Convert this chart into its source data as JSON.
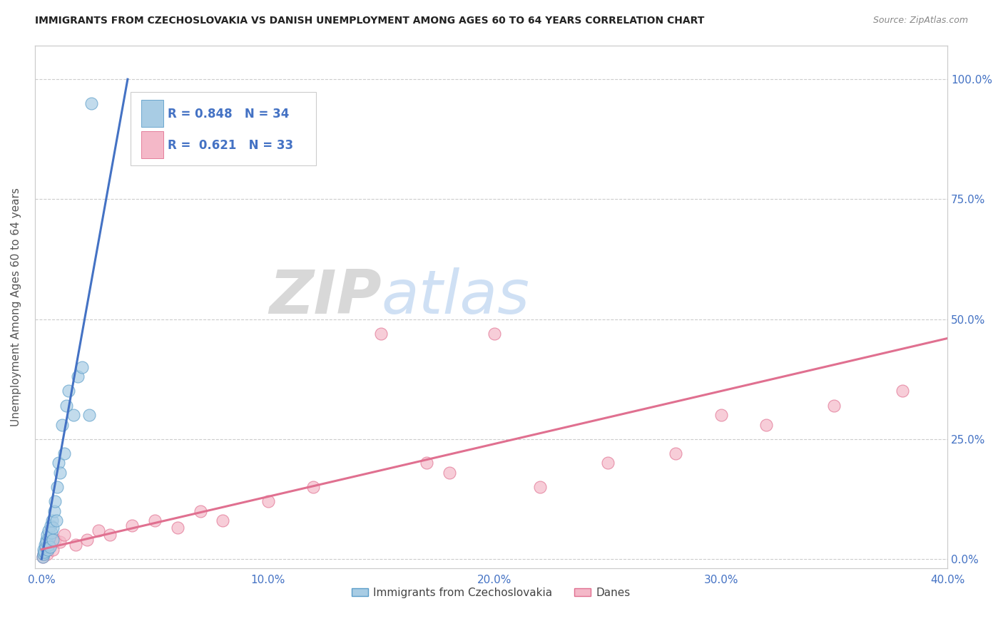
{
  "title": "IMMIGRANTS FROM CZECHOSLOVAKIA VS DANISH UNEMPLOYMENT AMONG AGES 60 TO 64 YEARS CORRELATION CHART",
  "source": "Source: ZipAtlas.com",
  "ylabel": "Unemployment Among Ages 60 to 64 years",
  "x_tick_vals": [
    0.0,
    10.0,
    20.0,
    30.0,
    40.0
  ],
  "y_tick_vals": [
    0.0,
    25.0,
    50.0,
    75.0,
    100.0
  ],
  "legend_label1": "Immigrants from Czechoslovakia",
  "legend_label2": "Danes",
  "R1": 0.848,
  "N1": 34,
  "R2": 0.621,
  "N2": 33,
  "blue_color": "#a8cce4",
  "blue_edge_color": "#5b9dc9",
  "blue_line_color": "#4472c4",
  "pink_color": "#f4b8c8",
  "pink_edge_color": "#e07090",
  "pink_line_color": "#e07090",
  "blue_scatter_x": [
    0.05,
    0.08,
    0.1,
    0.12,
    0.15,
    0.18,
    0.2,
    0.22,
    0.25,
    0.28,
    0.3,
    0.32,
    0.35,
    0.38,
    0.4,
    0.42,
    0.45,
    0.48,
    0.5,
    0.55,
    0.6,
    0.65,
    0.7,
    0.75,
    0.8,
    0.9,
    1.0,
    1.1,
    1.2,
    1.4,
    1.6,
    1.8,
    2.1,
    2.2
  ],
  "blue_scatter_y": [
    0.5,
    1.0,
    2.0,
    1.5,
    3.0,
    2.5,
    4.0,
    3.5,
    5.0,
    2.0,
    6.0,
    3.0,
    4.5,
    2.5,
    7.0,
    5.5,
    8.0,
    4.0,
    6.5,
    10.0,
    12.0,
    8.0,
    15.0,
    20.0,
    18.0,
    28.0,
    22.0,
    32.0,
    35.0,
    30.0,
    38.0,
    40.0,
    30.0,
    95.0
  ],
  "pink_scatter_x": [
    0.05,
    0.1,
    0.15,
    0.2,
    0.25,
    0.3,
    0.4,
    0.5,
    0.6,
    0.8,
    1.0,
    1.5,
    2.0,
    2.5,
    3.0,
    4.0,
    5.0,
    6.0,
    7.0,
    8.0,
    10.0,
    12.0,
    15.0,
    17.0,
    18.0,
    20.0,
    22.0,
    25.0,
    28.0,
    30.0,
    32.0,
    35.0,
    38.0
  ],
  "pink_scatter_y": [
    0.5,
    1.0,
    1.5,
    2.0,
    1.0,
    2.5,
    3.0,
    2.0,
    4.0,
    3.5,
    5.0,
    3.0,
    4.0,
    6.0,
    5.0,
    7.0,
    8.0,
    6.5,
    10.0,
    8.0,
    12.0,
    15.0,
    47.0,
    20.0,
    18.0,
    47.0,
    15.0,
    20.0,
    22.0,
    30.0,
    28.0,
    32.0,
    35.0
  ],
  "blue_line_x": [
    0.0,
    3.8
  ],
  "blue_line_y": [
    0.0,
    100.0
  ],
  "pink_line_x": [
    0.0,
    40.0
  ],
  "pink_line_y": [
    2.0,
    46.0
  ],
  "xlim": [
    -0.3,
    40.0
  ],
  "ylim": [
    -2.0,
    107.0
  ],
  "watermark_zip": "ZIP",
  "watermark_atlas": "atlas",
  "background_color": "#ffffff",
  "grid_color": "#cccccc"
}
